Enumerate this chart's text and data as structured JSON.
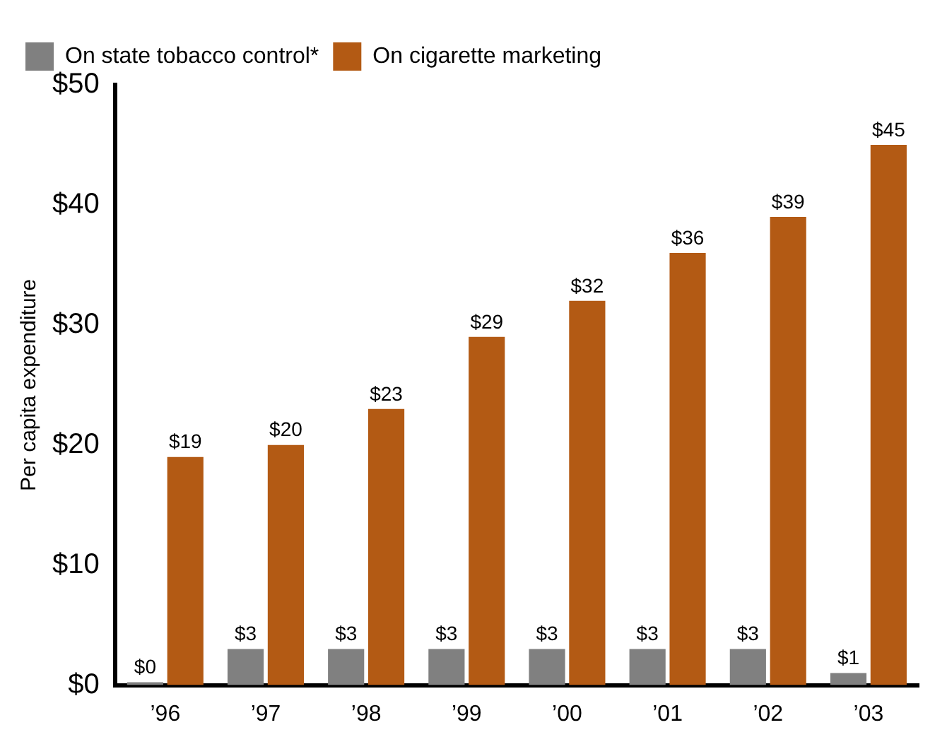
{
  "chart_data": {
    "type": "bar",
    "ylabel": "Per capita expenditure",
    "categories": [
      "’96",
      "’97",
      "’98",
      "’99",
      "’00",
      "’01",
      "’02",
      "’03"
    ],
    "series": [
      {
        "name": "On state tobacco control*",
        "color": "#808080",
        "values": [
          0,
          3,
          3,
          3,
          3,
          3,
          3,
          1
        ],
        "value_labels": [
          "$0",
          "$3",
          "$3",
          "$3",
          "$3",
          "$3",
          "$3",
          "$1"
        ]
      },
      {
        "name": "On cigarette marketing",
        "color": "#b35a14",
        "values": [
          19,
          20,
          23,
          29,
          32,
          36,
          39,
          45
        ],
        "value_labels": [
          "$19",
          "$20",
          "$23",
          "$29",
          "$32",
          "$36",
          "$39",
          "$45"
        ]
      }
    ],
    "ylim": [
      0,
      50
    ],
    "yticks": [
      {
        "value": 0,
        "label": "$0"
      },
      {
        "value": 10,
        "label": "$10"
      },
      {
        "value": 20,
        "label": "$20"
      },
      {
        "value": 30,
        "label": "$30"
      },
      {
        "value": 40,
        "label": "$40"
      },
      {
        "value": 50,
        "label": "$50"
      }
    ],
    "grid": false,
    "legend": "top left"
  }
}
